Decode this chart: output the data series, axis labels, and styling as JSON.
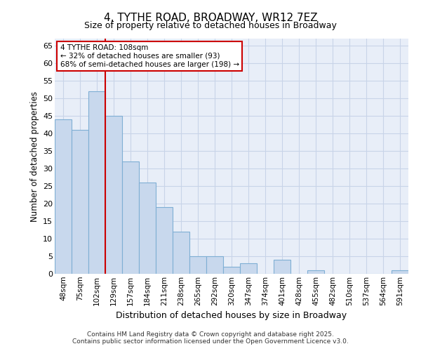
{
  "title": "4, TYTHE ROAD, BROADWAY, WR12 7EZ",
  "subtitle": "Size of property relative to detached houses in Broadway",
  "xlabel": "Distribution of detached houses by size in Broadway",
  "ylabel": "Number of detached properties",
  "footer_line1": "Contains HM Land Registry data © Crown copyright and database right 2025.",
  "footer_line2": "Contains public sector information licensed under the Open Government Licence v3.0.",
  "categories": [
    "48sqm",
    "75sqm",
    "102sqm",
    "129sqm",
    "157sqm",
    "184sqm",
    "211sqm",
    "238sqm",
    "265sqm",
    "292sqm",
    "320sqm",
    "347sqm",
    "374sqm",
    "401sqm",
    "428sqm",
    "455sqm",
    "482sqm",
    "510sqm",
    "537sqm",
    "564sqm",
    "591sqm"
  ],
  "values": [
    44,
    41,
    52,
    45,
    32,
    26,
    19,
    12,
    5,
    5,
    2,
    3,
    0,
    4,
    0,
    1,
    0,
    0,
    0,
    0,
    1
  ],
  "bar_color": "#c8d8ed",
  "bar_edge_color": "#7fafd4",
  "grid_color": "#c8d4e8",
  "plot_bg_color": "#e8eef8",
  "fig_bg_color": "#ffffff",
  "red_line_index": 2,
  "annotation_text": "4 TYTHE ROAD: 108sqm\n← 32% of detached houses are smaller (93)\n68% of semi-detached houses are larger (198) →",
  "annotation_box_facecolor": "#ffffff",
  "annotation_box_edgecolor": "#cc0000",
  "red_line_color": "#cc0000",
  "ylim": [
    0,
    67
  ],
  "yticks": [
    0,
    5,
    10,
    15,
    20,
    25,
    30,
    35,
    40,
    45,
    50,
    55,
    60,
    65
  ]
}
